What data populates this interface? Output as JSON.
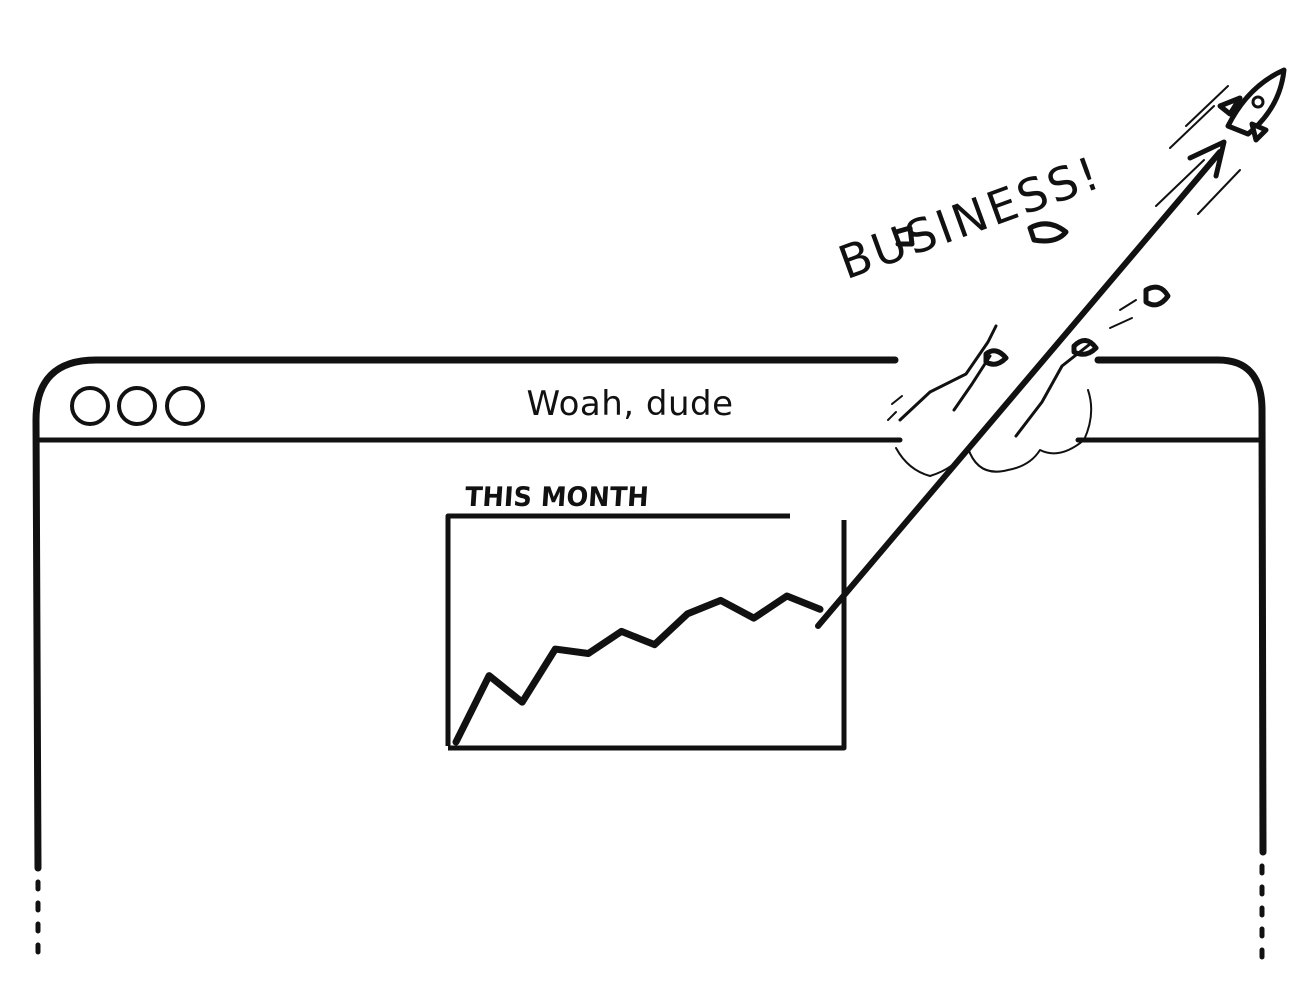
{
  "window": {
    "title": "Woah, dude",
    "controls": [
      "window-button",
      "window-button",
      "window-button"
    ]
  },
  "chart_data": {
    "type": "line",
    "title": "THIS MONTH",
    "xlabel": "",
    "ylabel": "",
    "series": [
      {
        "values": [
          0,
          30,
          18,
          42,
          40,
          50,
          44,
          58,
          64,
          56,
          66,
          60
        ]
      }
    ],
    "x": [
      0,
      1,
      2,
      3,
      4,
      5,
      6,
      7,
      8,
      9,
      10,
      11
    ],
    "grid": false,
    "legend": "none",
    "breakout": true
  },
  "annotation": {
    "text": "BUSINESS!"
  },
  "colors": {
    "ink": "#111111",
    "background": "#ffffff"
  },
  "icons": [
    "rocket-icon",
    "arrow-head-icon",
    "debris-icon"
  ]
}
